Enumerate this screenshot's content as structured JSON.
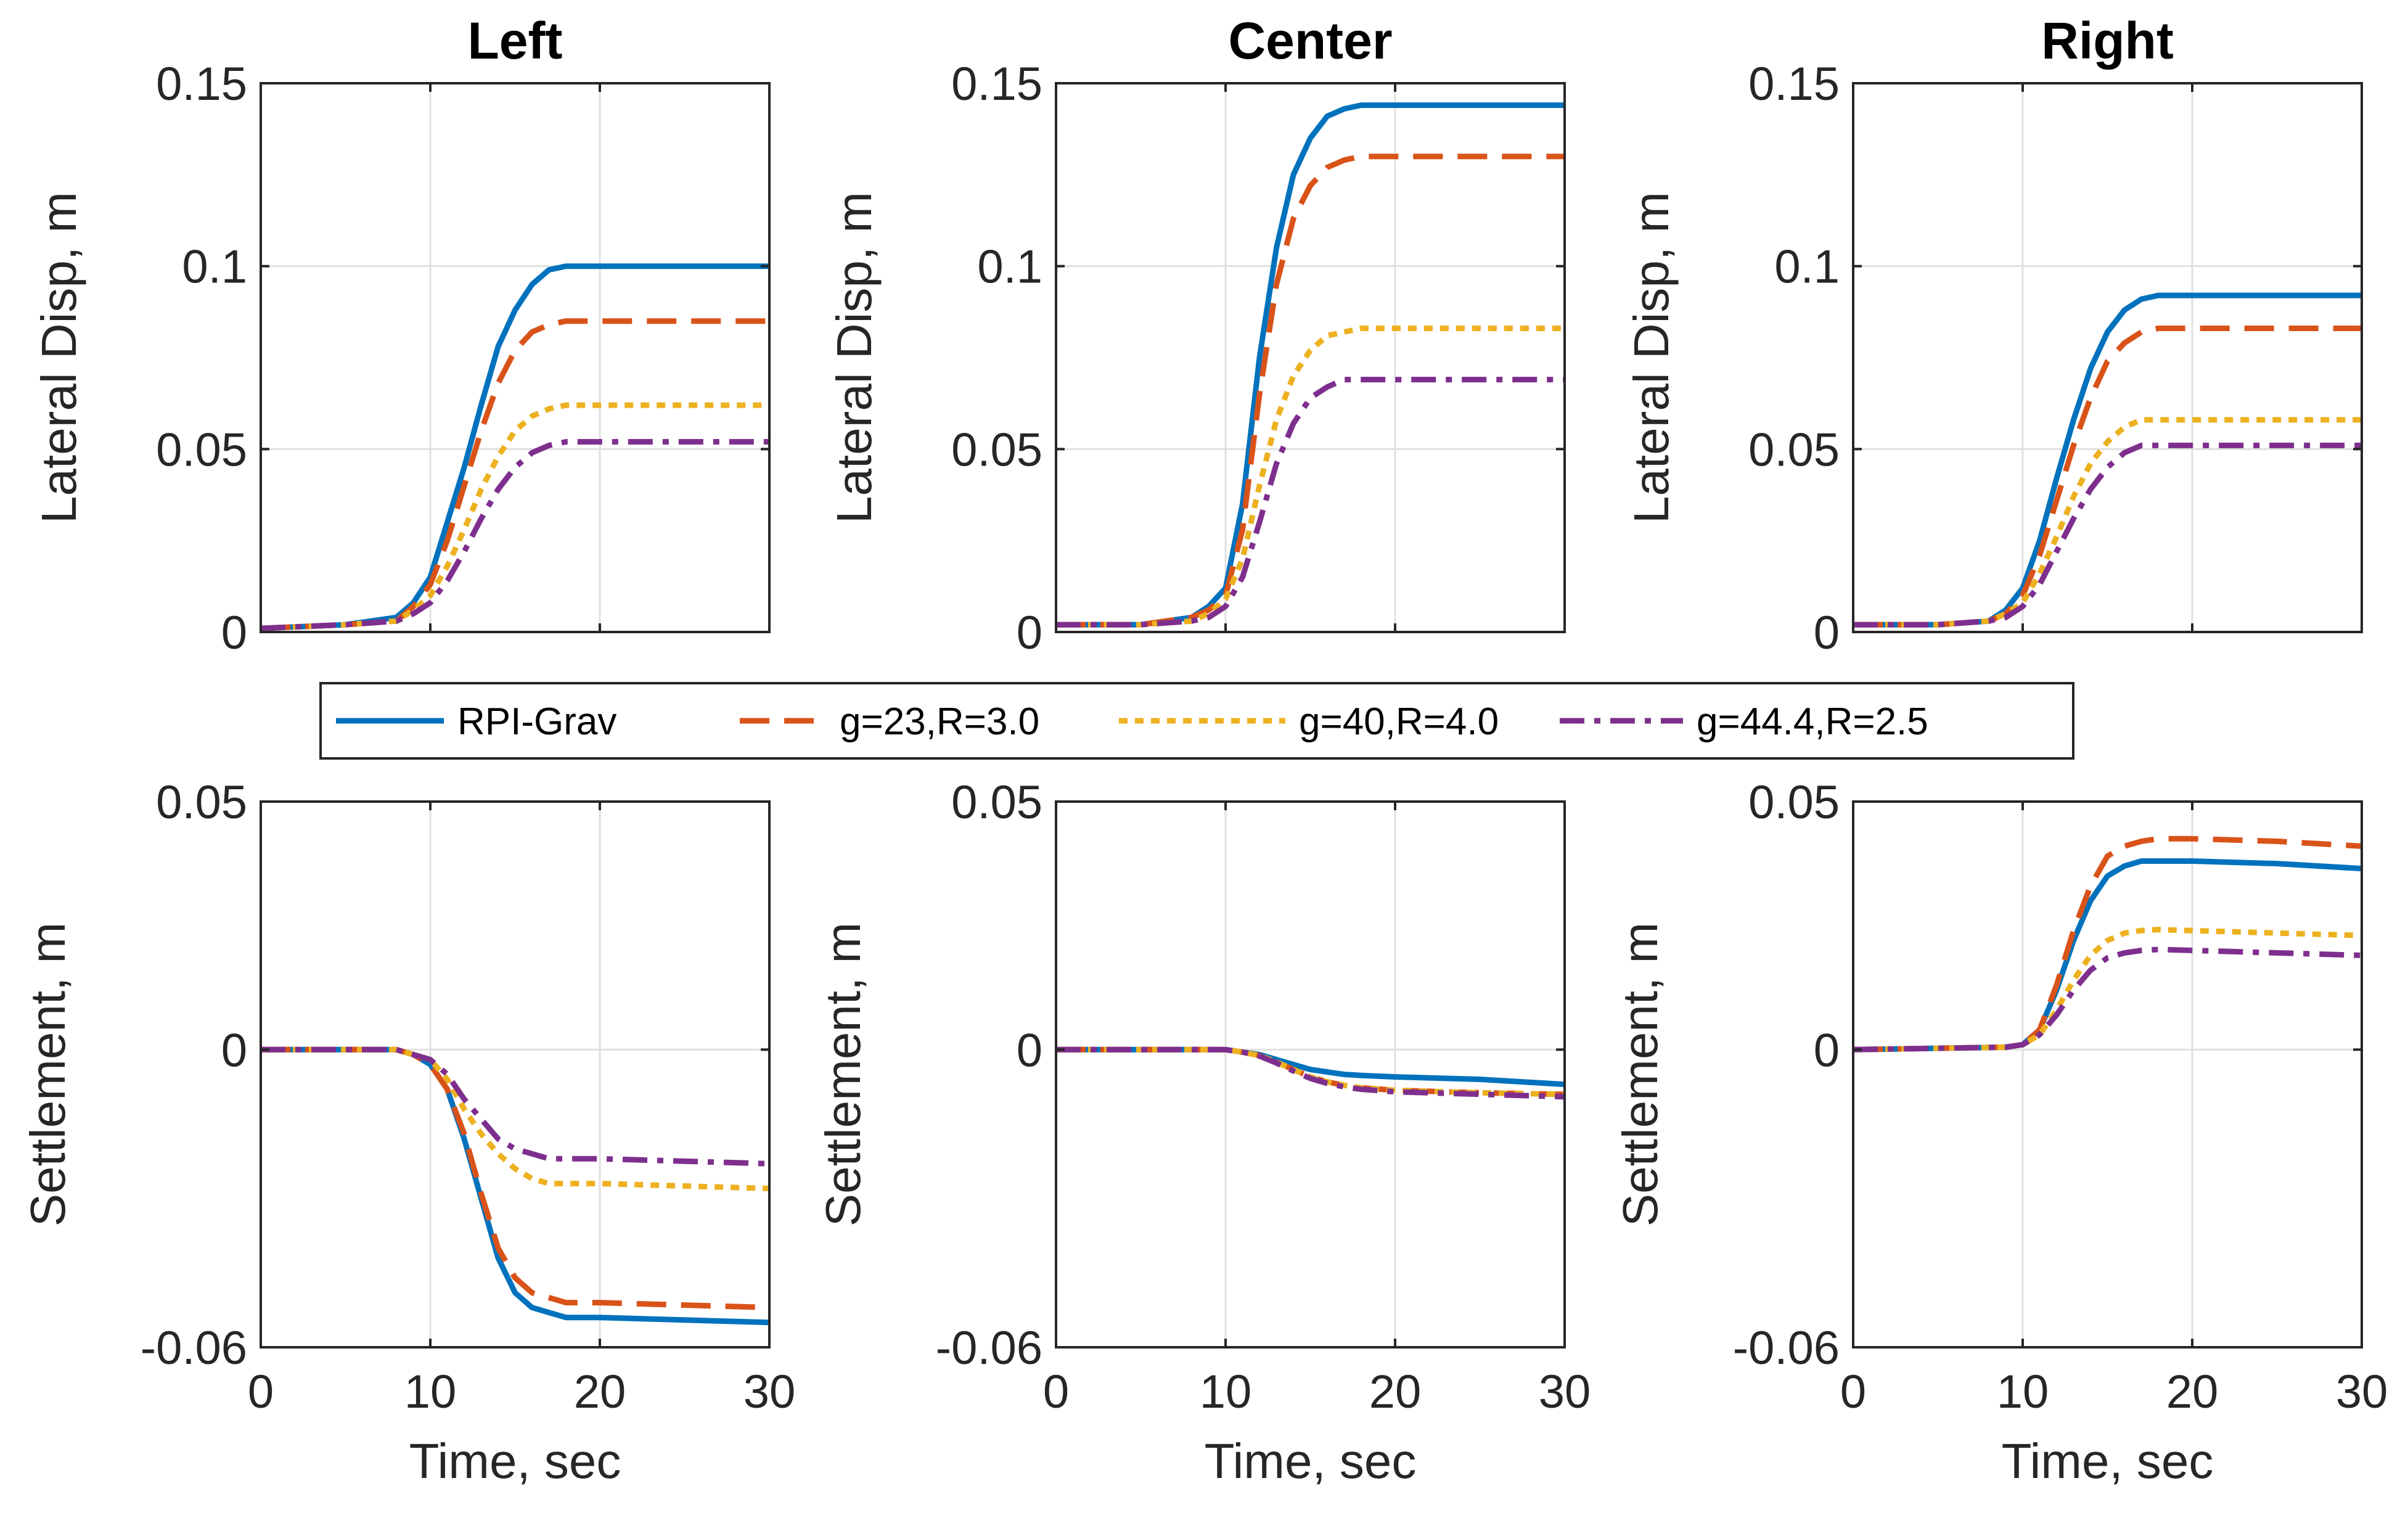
{
  "chart_data": [
    {
      "type": "line",
      "title": "Left",
      "xlabel": "",
      "ylabel": "Lateral Disp, m",
      "xlim": [
        0,
        30
      ],
      "ylim": [
        0,
        0.15
      ],
      "xticks": [],
      "xtick_labels": [],
      "yticks": [
        0,
        0.05,
        0.1,
        0.15
      ],
      "ytick_labels": [
        "0",
        "0.05",
        "0.1",
        "0.15"
      ],
      "grid": true,
      "series": [
        {
          "name": "RPI-Grav",
          "x": [
            0,
            5,
            8,
            9,
            10,
            11,
            12,
            13,
            14,
            15,
            16,
            17,
            18,
            30
          ],
          "values": [
            0.001,
            0.002,
            0.004,
            0.008,
            0.015,
            0.03,
            0.045,
            0.062,
            0.078,
            0.088,
            0.095,
            0.099,
            0.1,
            0.1
          ]
        },
        {
          "name": "g=23,R=3.0",
          "x": [
            0,
            5,
            8,
            9,
            10,
            11,
            12,
            13,
            14,
            15,
            16,
            17,
            18,
            30
          ],
          "values": [
            0.001,
            0.002,
            0.003,
            0.007,
            0.013,
            0.025,
            0.04,
            0.055,
            0.068,
            0.077,
            0.082,
            0.084,
            0.085,
            0.085
          ]
        },
        {
          "name": "g=40,R=4.0",
          "x": [
            0,
            5,
            8,
            9,
            10,
            11,
            12,
            13,
            14,
            15,
            16,
            17,
            18,
            30
          ],
          "values": [
            0.001,
            0.002,
            0.003,
            0.006,
            0.01,
            0.018,
            0.028,
            0.039,
            0.048,
            0.055,
            0.059,
            0.061,
            0.062,
            0.062
          ]
        },
        {
          "name": "g=44.4,R=2.5",
          "x": [
            0,
            5,
            8,
            9,
            10,
            11,
            12,
            13,
            14,
            15,
            16,
            17,
            18,
            30
          ],
          "values": [
            0.001,
            0.002,
            0.003,
            0.005,
            0.008,
            0.014,
            0.022,
            0.031,
            0.039,
            0.045,
            0.049,
            0.051,
            0.052,
            0.052
          ]
        }
      ]
    },
    {
      "type": "line",
      "title": "Center",
      "xlabel": "",
      "ylabel": "Lateral Disp, m",
      "xlim": [
        0,
        30
      ],
      "ylim": [
        0,
        0.15
      ],
      "xticks": [],
      "xtick_labels": [],
      "yticks": [
        0,
        0.05,
        0.1,
        0.15
      ],
      "ytick_labels": [
        "0",
        "0.05",
        "0.1",
        "0.15"
      ],
      "grid": true,
      "series": [
        {
          "name": "RPI-Grav",
          "x": [
            0,
            5,
            8,
            9,
            10,
            11,
            12,
            13,
            14,
            15,
            16,
            17,
            18,
            30
          ],
          "values": [
            0.002,
            0.002,
            0.004,
            0.007,
            0.012,
            0.035,
            0.075,
            0.105,
            0.125,
            0.135,
            0.141,
            0.143,
            0.144,
            0.144
          ]
        },
        {
          "name": "g=23,R=3.0",
          "x": [
            0,
            5,
            8,
            9,
            10,
            11,
            12,
            13,
            14,
            15,
            16,
            17,
            18,
            30
          ],
          "values": [
            0.002,
            0.002,
            0.004,
            0.006,
            0.01,
            0.028,
            0.065,
            0.095,
            0.113,
            0.122,
            0.127,
            0.129,
            0.13,
            0.13
          ]
        },
        {
          "name": "g=40,R=4.0",
          "x": [
            0,
            5,
            8,
            9,
            10,
            11,
            12,
            13,
            14,
            15,
            16,
            17,
            18,
            30
          ],
          "values": [
            0.002,
            0.002,
            0.003,
            0.005,
            0.009,
            0.02,
            0.04,
            0.058,
            0.07,
            0.077,
            0.081,
            0.082,
            0.083,
            0.083
          ]
        },
        {
          "name": "g=44.4,R=2.5",
          "x": [
            0,
            5,
            8,
            9,
            10,
            11,
            12,
            13,
            14,
            15,
            16,
            17,
            18,
            30
          ],
          "values": [
            0.002,
            0.002,
            0.003,
            0.004,
            0.007,
            0.015,
            0.03,
            0.046,
            0.057,
            0.064,
            0.067,
            0.069,
            0.069,
            0.069
          ]
        }
      ]
    },
    {
      "type": "line",
      "title": "Right",
      "xlabel": "",
      "ylabel": "Lateral Disp, m",
      "xlim": [
        0,
        30
      ],
      "ylim": [
        0,
        0.15
      ],
      "xticks": [],
      "xtick_labels": [],
      "yticks": [
        0,
        0.05,
        0.1,
        0.15
      ],
      "ytick_labels": [
        "0",
        "0.05",
        "0.1",
        "0.15"
      ],
      "grid": true,
      "series": [
        {
          "name": "RPI-Grav",
          "x": [
            0,
            5,
            8,
            9,
            10,
            11,
            12,
            13,
            14,
            15,
            16,
            17,
            18,
            30
          ],
          "values": [
            0.002,
            0.002,
            0.003,
            0.006,
            0.012,
            0.025,
            0.042,
            0.058,
            0.072,
            0.082,
            0.088,
            0.091,
            0.092,
            0.092
          ]
        },
        {
          "name": "g=23,R=3.0",
          "x": [
            0,
            5,
            8,
            9,
            10,
            11,
            12,
            13,
            14,
            15,
            16,
            17,
            18,
            30
          ],
          "values": [
            0.002,
            0.002,
            0.003,
            0.005,
            0.01,
            0.021,
            0.036,
            0.051,
            0.064,
            0.074,
            0.079,
            0.082,
            0.083,
            0.083
          ]
        },
        {
          "name": "g=40,R=4.0",
          "x": [
            0,
            5,
            8,
            9,
            10,
            11,
            12,
            13,
            14,
            15,
            16,
            17,
            18,
            30
          ],
          "values": [
            0.002,
            0.002,
            0.003,
            0.005,
            0.008,
            0.016,
            0.026,
            0.037,
            0.046,
            0.052,
            0.056,
            0.058,
            0.058,
            0.058
          ]
        },
        {
          "name": "g=44.4,R=2.5",
          "x": [
            0,
            5,
            8,
            9,
            10,
            11,
            12,
            13,
            14,
            15,
            16,
            17,
            18,
            30
          ],
          "values": [
            0.002,
            0.002,
            0.003,
            0.004,
            0.007,
            0.013,
            0.022,
            0.031,
            0.039,
            0.045,
            0.049,
            0.051,
            0.051,
            0.051
          ]
        }
      ]
    },
    {
      "type": "line",
      "title": "",
      "xlabel": "Time, sec",
      "ylabel": "Settlement, m",
      "xlim": [
        0,
        30
      ],
      "ylim": [
        -0.06,
        0.05
      ],
      "xticks": [
        0,
        10,
        20,
        30
      ],
      "xtick_labels": [
        "0",
        "10",
        "20",
        "30"
      ],
      "yticks": [
        -0.06,
        0,
        0.05
      ],
      "ytick_labels": [
        "-0.06",
        "0",
        "0.05"
      ],
      "grid": true,
      "series": [
        {
          "name": "RPI-Grav",
          "x": [
            0,
            8,
            9,
            10,
            11,
            12,
            13,
            14,
            15,
            16,
            17,
            18,
            20,
            30
          ],
          "values": [
            0,
            0,
            -0.001,
            -0.003,
            -0.008,
            -0.018,
            -0.03,
            -0.042,
            -0.049,
            -0.052,
            -0.053,
            -0.054,
            -0.054,
            -0.055
          ]
        },
        {
          "name": "g=23,R=3.0",
          "x": [
            0,
            8,
            9,
            10,
            11,
            12,
            13,
            14,
            15,
            16,
            17,
            18,
            20,
            30
          ],
          "values": [
            0,
            0,
            -0.001,
            -0.003,
            -0.008,
            -0.017,
            -0.029,
            -0.04,
            -0.046,
            -0.049,
            -0.05,
            -0.051,
            -0.051,
            -0.052
          ]
        },
        {
          "name": "g=40,R=4.0",
          "x": [
            0,
            8,
            9,
            10,
            11,
            12,
            13,
            14,
            15,
            16,
            17,
            18,
            20,
            30
          ],
          "values": [
            0,
            0,
            -0.001,
            -0.002,
            -0.006,
            -0.012,
            -0.017,
            -0.021,
            -0.024,
            -0.026,
            -0.027,
            -0.027,
            -0.027,
            -0.028
          ]
        },
        {
          "name": "g=44.4,R=2.5",
          "x": [
            0,
            8,
            9,
            10,
            11,
            12,
            13,
            14,
            15,
            16,
            17,
            18,
            20,
            30
          ],
          "values": [
            0,
            0,
            -0.001,
            -0.002,
            -0.005,
            -0.01,
            -0.014,
            -0.018,
            -0.02,
            -0.021,
            -0.022,
            -0.022,
            -0.022,
            -0.023
          ]
        }
      ]
    },
    {
      "type": "line",
      "title": "",
      "xlabel": "Time, sec",
      "ylabel": "Settlement, m",
      "xlim": [
        0,
        30
      ],
      "ylim": [
        -0.06,
        0.05
      ],
      "xticks": [
        0,
        10,
        20,
        30
      ],
      "xtick_labels": [
        "0",
        "10",
        "20",
        "30"
      ],
      "yticks": [
        -0.06,
        0,
        0.05
      ],
      "ytick_labels": [
        "-0.06",
        "0",
        "0.05"
      ],
      "grid": true,
      "series": [
        {
          "name": "RPI-Grav",
          "x": [
            0,
            9,
            10,
            11,
            12,
            13,
            14,
            15,
            16,
            17,
            18,
            20,
            25,
            30
          ],
          "values": [
            0,
            0,
            0,
            -0.0005,
            -0.001,
            -0.002,
            -0.003,
            -0.004,
            -0.0045,
            -0.005,
            -0.0052,
            -0.0055,
            -0.006,
            -0.007
          ]
        },
        {
          "name": "g=23,R=3.0",
          "x": [
            0,
            9,
            10,
            11,
            12,
            13,
            14,
            15,
            16,
            17,
            18,
            20,
            25,
            30
          ],
          "values": [
            0,
            0,
            0,
            -0.0005,
            -0.0012,
            -0.0025,
            -0.004,
            -0.0055,
            -0.0065,
            -0.0072,
            -0.0077,
            -0.0082,
            -0.0087,
            -0.009
          ]
        },
        {
          "name": "g=40,R=4.0",
          "x": [
            0,
            9,
            10,
            11,
            12,
            13,
            14,
            15,
            16,
            17,
            18,
            20,
            25,
            30
          ],
          "values": [
            0,
            0,
            0,
            -0.0005,
            -0.0012,
            -0.0025,
            -0.004,
            -0.0055,
            -0.0065,
            -0.0072,
            -0.0077,
            -0.0082,
            -0.0087,
            -0.009
          ]
        },
        {
          "name": "g=44.4,R=2.5",
          "x": [
            0,
            9,
            10,
            11,
            12,
            13,
            14,
            15,
            16,
            17,
            18,
            20,
            25,
            30
          ],
          "values": [
            0,
            0,
            0,
            -0.0005,
            -0.0013,
            -0.0027,
            -0.0043,
            -0.0058,
            -0.0068,
            -0.0075,
            -0.008,
            -0.0085,
            -0.009,
            -0.0095
          ]
        }
      ]
    },
    {
      "type": "line",
      "title": "",
      "xlabel": "Time, sec",
      "ylabel": "Settlement, m",
      "xlim": [
        0,
        30
      ],
      "ylim": [
        -0.06,
        0.05
      ],
      "xticks": [
        0,
        10,
        20,
        30
      ],
      "xtick_labels": [
        "0",
        "10",
        "20",
        "30"
      ],
      "yticks": [
        -0.06,
        0,
        0.05
      ],
      "ytick_labels": [
        "-0.06",
        "0",
        "0.05"
      ],
      "grid": true,
      "series": [
        {
          "name": "RPI-Grav",
          "x": [
            0,
            9,
            10,
            11,
            12,
            13,
            14,
            15,
            16,
            17,
            18,
            20,
            25,
            30
          ],
          "values": [
            0,
            0.0005,
            0.001,
            0.004,
            0.012,
            0.022,
            0.03,
            0.035,
            0.037,
            0.038,
            0.038,
            0.038,
            0.0375,
            0.0365
          ]
        },
        {
          "name": "g=23,R=3.0",
          "x": [
            0,
            9,
            10,
            11,
            12,
            13,
            14,
            15,
            16,
            17,
            18,
            20,
            25,
            30
          ],
          "values": [
            0,
            0.0005,
            0.001,
            0.004,
            0.013,
            0.024,
            0.033,
            0.039,
            0.041,
            0.042,
            0.0425,
            0.0425,
            0.042,
            0.041
          ]
        },
        {
          "name": "g=40,R=4.0",
          "x": [
            0,
            9,
            10,
            11,
            12,
            13,
            14,
            15,
            16,
            17,
            18,
            20,
            25,
            30
          ],
          "values": [
            0,
            0.0005,
            0.001,
            0.003,
            0.008,
            0.014,
            0.019,
            0.022,
            0.0235,
            0.024,
            0.0242,
            0.024,
            0.0235,
            0.023
          ]
        },
        {
          "name": "g=44.4,R=2.5",
          "x": [
            0,
            9,
            10,
            11,
            12,
            13,
            14,
            15,
            16,
            17,
            18,
            20,
            25,
            30
          ],
          "values": [
            0,
            0.0005,
            0.001,
            0.003,
            0.007,
            0.012,
            0.016,
            0.0185,
            0.0195,
            0.02,
            0.0202,
            0.02,
            0.0195,
            0.019
          ]
        }
      ]
    }
  ],
  "legend": {
    "entries": [
      {
        "label": "RPI-Grav",
        "color": "#0072BD",
        "style": "solid"
      },
      {
        "label": "g=23,R=3.0",
        "color": "#D95319",
        "style": "dashed"
      },
      {
        "label": "g=40,R=4.0",
        "color": "#EDB120",
        "style": "dotted"
      },
      {
        "label": "g=44.4,R=2.5",
        "color": "#7E2F8E",
        "style": "dashdot"
      }
    ]
  }
}
